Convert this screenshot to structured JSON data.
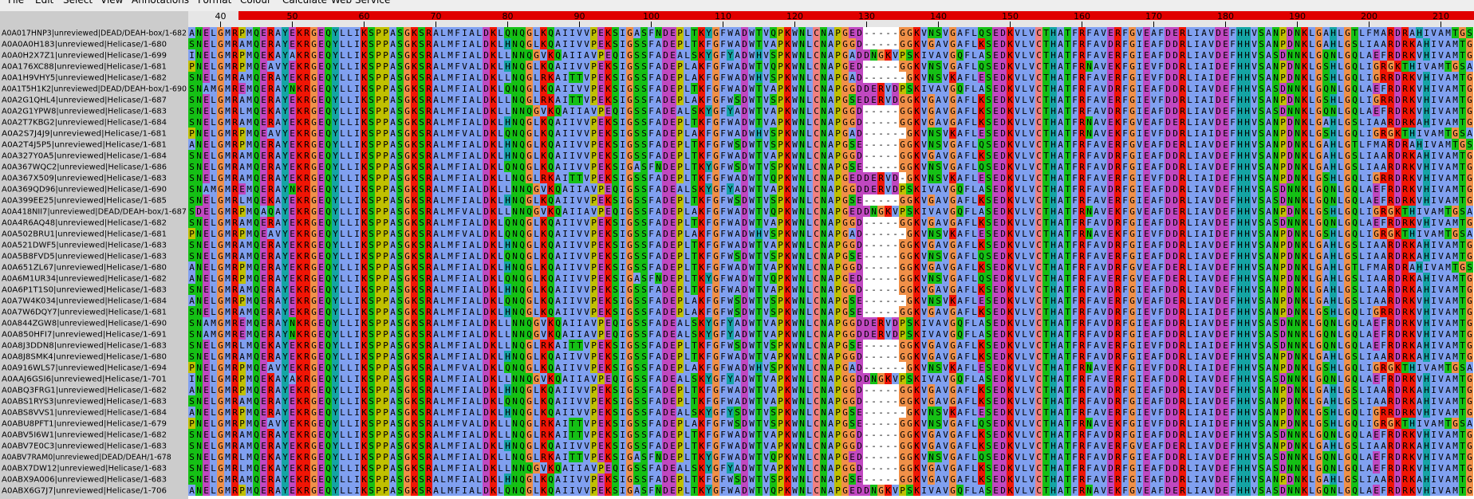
{
  "menu": [
    "File",
    "Edit",
    "Select",
    "View",
    "Annotations",
    "Format",
    "Colour",
    "Calculate",
    "Web Service"
  ],
  "ruler": {
    "ticks": [
      40,
      50,
      60,
      70,
      80,
      90,
      100,
      110,
      120,
      130,
      140,
      150,
      160,
      170,
      180,
      190,
      200,
      210
    ]
  },
  "rows": [
    {
      "name": "A0A017HNP3|unreviewed|DEAD/DEAH-box/1-682",
      "sequence": "ANELGMRPMQERAYEKRGEQYLLIKSPPASGKSRALMFIALDKLQNQGLKQAIIVVPEKSIGASFNDEPLTKYGFWADWTVQPKWNLCNAPGED-----GGKVNSVGAFLQSEDKVLVCTHATFRFAVERFGVEAFDERLIAVDEFHHVSANPDNKLGAHLGTLFMARDRAHIVAMTGS"
    },
    {
      "name": "A0A0A0H183|unreviewed|Helicase/1-680",
      "sequence": "SNELGMRAMQERAYEKRGEQYLLIKSPPASGKSRALMFIALDKLHNQGLKQAIIVVPEKSIGSSFADEPLTKFGFWADWTVAPKWNLCNAPGGD-----GGKVGAVGAFLKSEDKVLVCTHATFRFAVDRFGIEAFDDRLIAVDEFHHVSANPDNKLGAHLGSLIAARDRKAHIVAMTG"
    },
    {
      "name": "A0A0H2X7Z1|unreviewed|Helicase/1-699",
      "sequence": "INELGMRPMQEKAYAKRGEQYLLIKSPPASGKSRALMFIALDKLLNNQGVKQAIIAVPEQIGSSFADEALSKYGFYADWHVSPKWNLCNAPGADDNGKVPSKIVAVGQFLASEDKVLVCTHATFRFAVERFGIEAFDDRLIAVDEFHHVSASDNNKLGQNLGQLAEFRDRKVHIVAMTG"
    },
    {
      "name": "A0A176XC88|unreviewed|Helicase/1-681",
      "sequence": "PNELGMRPMQEAVYEKRGEQYLLIKSPPASGKSRALMFVALDKLHNQGLKQAIIVVPEKSIGSSFADEPLAKFGFWADWTVQPKWNLCNAPGED-----GGKVNSVGAFLQSEDKVLVCTHATFRNAVEKFGIEVFDDRLIAIDEFHHVSANPDNKLGSHLGQLIGRGKTHIVAMTGSA"
    },
    {
      "name": "A0A1H9VHY5|unreviewed|Helicase/1-682",
      "sequence": "SNELGMRAMQERAYEKRGEQYLLIKSPPASGKSRALMFIALDKLLNQGLRKAITTVPEKSIGSSFADEPLAKFGFWADWHVSPKWNLCNAPGAD------GKVNSVKAFLESEDKVLVCTHATFRFAVERFGIEVFDDRLIAIDEFHHVSANPDNKLGSHLGQLIGRRDRKVHIVAMTG"
    },
    {
      "name": "A0A1T5H1K2|unreviewed|DEAD/DEAH-box/1-690",
      "sequence": "SNAMGMREMQERAYNKRGEQYLLIKSPPASGKSRALMFIALDKLQNQGLKQAIIVVPEKSIGSSFADEPLTKFGFWADWTVAPKWNLCNAPGGDDERVDPSKIVAVGQFLASEDKVLVCTHATFRFAVDRFGIEAFDDRLIAVDEFHHVSASDNNKLGQNLGQLAEFRDRKVHIVAMTG"
    },
    {
      "name": "A0A2G1QHL4|unreviewed|Helicase/1-687",
      "sequence": "SNELGMRAMQERAYEKRGEQYLLIKSPPASGKSRALMFIALDKLLNQGLRKAITTVPEKSIGSSFADEPLAKFGFWSDWTVSPKWNLCNAPGSEDERVDGGKVGAVGAFLKSEDKVLVCTHATFRFAVERFGIEVFDDRLIAIDEFHHVSANPDNKLGSHLGQLIGRRDRKVHIVAMTG"
    },
    {
      "name": "A0A2G1YPW8|unreviewed|Helicase/1-683",
      "sequence": "SNELGMRLMQEKAYEKRGEQYLLIKSPPASGKSRALMFIALDKLLNNQGVKQAIIAVPEQIGSSFADEALSKYGFYADWTVAPKWNLCNAPGGD-----GGKVGAVGAFLKSEDKVLVCTHATFRFAVDRFGIEAFDDRLIAVDEFHHVSASDNNKLGQNLGQLAEFRDRKVHIVAMTG"
    },
    {
      "name": "A0A2T7KBG2|unreviewed|Helicase/1-684",
      "sequence": "SNELGMRAMQERAYEKRGEQYLLIKSPPASGKSRALMFIALDKLHNQGLKQAIIVVPEKSIGSSFADEPLTKFGFWADWTVAPKWNLCNAPGGD-----GGKVGAVGAFLKSEDKVLVCTHATFRNAVEKFGVEAFDERLIAVDEFHHVSANPDNKLGAHLGSLIAARDRKAHIVAMTG"
    },
    {
      "name": "A0A2S7J4J9|unreviewed|Helicase/1-681",
      "sequence": "PNELGMRPMQEAVYEKRGEQYLLIKSPPASGKSRALMFVALDKLQNQGLKQAIIVVPEKSIGSSFADEPLAKFGFWADWHVSPKWNLCNAPGAD------GKVNSVKAFLESEDKVLVCTHATFRNAVEKFGIEVFDDRLIAIDEFHHVSANPDNKLGSHLGQLIGRGKTHIVAMTGSA"
    },
    {
      "name": "A0A2T4J5P5|unreviewed|Helicase/1-681",
      "sequence": "ANELGMRPMQERAYEKRGEQYLLIKSPPASGKSRALMFIALDKLHNQGLKQAIIVVPEKSIGSSFADEPLTKFGFWSDWTVSPKWNLCNAPGSE-----GGKVNSVGAFLQSEDKVLVCTHATFRFAVERFGVEAFDERLIAVDEFHHVSANPDNKLGAHLGTLFMARDRAHIVAMTGS"
    },
    {
      "name": "A0A327Y0A5|unreviewed|Helicase/1-684",
      "sequence": "SNELGMRAMQERAYEKRGEQYLLIKSPPASGKSRALMFIALDKLHNQGLKQAIIVVPEKSIGSSFADEPLTKFGFWADWTVAPKWNLCNAPGGD-----GGKVGAVGAFLKSEDKVLVCTHATFRFAVDRFGIEAFDDRLIAVDEFHHVSANPDNKLGAHLGSLIAARDRKAHIVAMTG"
    },
    {
      "name": "A0A367WQC2|unreviewed|Helicase/1-686",
      "sequence": "SNELGMRAMQERAYEKRGEQYLLIKSPPASGKSRALMFIALDKLQNQGLKQAIIVVPEKSIGASFNDEPLTKYGFWSDWTVSPKWNLCNAPGSE-----GGKVNSVGAFLQSEDKVLVCTHATFRFAVDRFGIEAFDDRLIAVDEFHHVSANPDNKLGAHLGSLIAARDRKVHIVAMTG"
    },
    {
      "name": "A0A367X509|unreviewed|Helicase/1-683",
      "sequence": "SNELGMRAMQERAYEKRGEQYLLIKSPPASGKSRALMFIALDKLLNQGLRKAITTVPEKSIGSSFADEPLTKFGFWADWTVQPKWNLCNAPGEDDERVD-GKVNSVKAFLESEDKVLVCTHATFRFAVERFGIEVFDDRLIAIDEFHHVSANPDNKLGSHLGQLIGRRDRKVHIVAMTG"
    },
    {
      "name": "A0A369QD96|unreviewed|Helicase/1-690",
      "sequence": "SNAMGMREMQERAYNKRGEQYLLIKSPPASGKSRALMFIALDKLLNNQGVKQAIIAVPEQIGSSFADEALSKYGFYADWTVAPKWNLCNAPGGDDERVDPSKIVAVGQFLASEDKVLVCTHATFRFAVDRFGIEAFDDRLIAVDEFHHVSASDNNKLGQNLGQLAEFRDRKVHIVAMTG"
    },
    {
      "name": "A0A399EE25|unreviewed|Helicase/1-685",
      "sequence": "SNELGMRLMQEKAYEKRGEQYLLIKSPPASGKSRALMFIALDKLHNQGLKQAIIVVPEKSIGSSFADEPLTKFGFWSDWTVSPKWNLCNAPGSE-----GGKVGAVGAFLKSEDKVLVCTHATFRFAVERFGIEAFDDRLIAVDEFHHVSASDNNKLGQNLGQLAEFRDRKVHIVAMTG"
    },
    {
      "name": "A0A418NII7|unreviewed|DEAD/DEAH-box/1-687",
      "sequence": "SDELGMRPMQAQAYEKRGEQYLLIKSPPASGKSRALMFVALDKLLNNQGVKQAIIAVPEQIGSSFADEPLAKFGFWADWTVQPKWNLCNAPGEDDNGKVPSKIVAVGQFLASEDKVLVCTHATFRNAVEKFGVEAFDERLIAVDEFHHVSANPDNKLGSHLGQLIGRGKTHIVAMTGSA"
    },
    {
      "name": "A0A4R6AQ48|unreviewed|Helicase/1-682",
      "sequence": "SNELGMRAMQERAYEKRGEQYLLIKSPPASGKSRALMFIALDKLQNQGLKQAIIVVPEKSIGSSFADEPLTKFGFWADWTVAPKWNLCNAPGGD-----GGKVGAVGAFLKSEDKVLVCTHATFRFAVDRFGIEAFDDRLIAVDEFHHVSASDNNKLGQNLGQLAEFRDRKVHIVAMTG"
    },
    {
      "name": "A0A502BRU1|unreviewed|Helicase/1-681",
      "sequence": "PNELGMRPMQEAVYEKRGEQYLLIKSPPASGKSRALMFVALDKLQNQGLKQAIIVVPEKSIGSSFADEPLAKFGFWADWHVSPKWNLCNAPGAD------GKVNSVKAFLESEDKVLVCTHATFRNAVEKFGIEVFDDRLIAIDEFHHVSANPDNKLGSHLGQLIGRGKTHIVAMTGSA"
    },
    {
      "name": "A0A521DWF5|unreviewed|Helicase/1-683",
      "sequence": "SNELGMRAMQERAYEKRGEQYLLIKSPPASGKSRALMFIALDKLHNQGLKQAIIVVPEKSIGSSFADEPLTKFGFWADWTVAPKWNLCNAPGGD-----GGKVGAVGAFLKSEDKVLVCTHATFRFAVDRFGIEAFDDRLIAVDEFHHVSANPDNKLGAHLGSLIAARDRKAHIVAMTG"
    },
    {
      "name": "A0A5B8FVD5|unreviewed|Helicase/1-683",
      "sequence": "SNELGMRAMQERAYEKRGEQYLLIKSPPASGKSRALMFIALDKLQNQGLKQAIIVVPEKSIGSSFADEPLTKFGFWSDWTVSPKWNLCNAPGSE-----GGKVNSVGAFLQSEDKVLVCTHATFRFAVERFGIEAFDDRLIAVDEFHHVSANPDNKLGAHLGSLIAARDRKAHIVAMTG"
    },
    {
      "name": "A0A651ZL67|unreviewed|Helicase/1-680",
      "sequence": "ANELGMRPMQERAYEKRGEQYLLIKSPPASGKSRALMFIALDKLHNQGLKQAIIVVPEKSIGSSFADEPLTKFGFWADWTVAPKWNLCNAPGGD-----GGKVGAVGAFLKSEDKVLVCTHATFRFAVDRFGVEAFDERLIAVDEFHHVSANPDNKLGAHLGTLFMARDRAHIVAMTGS"
    },
    {
      "name": "A0A6M1UR34|unreviewed|Helicase/1-682",
      "sequence": "ANELGMRPMQERAYEKRGEQYLLIKSPPASGKSRALMFIALDKLQNQGLKQAIIVVPEKSIGASFNDEPLTKYGFWADWTVQPKWNLCNAPGED-----GGKVNSVGAFLQSEDKVLVCTHATFRFAVERFGVEAFDERLIAVDEFHHVSANPDNKLGAHLGSLIAARDRKAHIVAMTG"
    },
    {
      "name": "A0A6P1T1S0|unreviewed|Helicase/1-683",
      "sequence": "SNELGMRAMQERAYEKRGEQYLLIKSPPASGKSRALMFIALDKLHNQGLKQAIIVVPEKSIGSSFADEPLTKFGFWADWTVAPKWNLCNAPGGD-----GGKVGAVGAFLKSEDKVLVCTHATFRFAVDRFGIEAFDDRLIAVDEFHHVSANPDNKLGAHLGSLIAARDRKAHIVAMTG"
    },
    {
      "name": "A0A7W4K034|unreviewed|Helicase/1-684",
      "sequence": "ANELGMRPMQERAYEKRGEQYLLIKSPPASGKSRALMFIALDKLQNQGLKQAIIVVPEKSIGSSFADEPLAKFGFWSDWTVSPKWNLCNAPGSE------GKVNSVKAFLESEDKVLVCTHATFRFAVERFGVEAFDERLIAVDEFHHVSANPDNKLGAHLGSLIAARDRKVHIVAMTG"
    },
    {
      "name": "A0A7W6DQY7|unreviewed|Helicase/1-681",
      "sequence": "SNELGMRAMQERAYEKRGEQYLLIKSPPASGKSRALMFIALDKLHNQGLKQAIIVVPEKSIGSSFADEPLAKFGFWSDWTVSPKWNLCNAPGSE-----GGKVGAVGAFLKSEDKVLVCTHATFRFAVDRFGIEVFDDRLIAIDEFHHVSANPDNKLGSHLGQLIGRRDRKVHIVAMTG"
    },
    {
      "name": "A0A844ZGW8|unreviewed|Helicase/1-690",
      "sequence": "SNAMGMREMQERAYNKRGEQYLLIKSPPASGKSRALMFIALDKLLNNQGVKQAIIAVPEQIGSSFADEALSKYGFYADWTVAPKWNLCNAPGGDDERVDPSKIVAVGQFLASEDKVLVCTHATFRFAVDRFGIEAFDDRLIAVDEFHHVSASDNNKLGQNLGQLAEFRDRKVHIVAMTG"
    },
    {
      "name": "A0A850HFI7|unreviewed|Helicase/1-691",
      "sequence": "SNAMGMREMQERAYNKRGEQYLLIKSPPASGKSRALMFIALDKLLNNQGVKQAIIAVPEQIGSSFADEALSKYGFYADWTVAPKWNLCNAPGGDDERVDPSKIVAVGQFLASEDKVLVCTHATFRFAVDRFGIEAFDDRLIAVDEFHHVSASDNNKLGQNLGQLAEFRDRKVHIVAMTG"
    },
    {
      "name": "A0A8J3DDN8|unreviewed|Helicase/1-683",
      "sequence": "SNELGMRLMQEKAYEKRGEQYLLIKSPPASGKSRALMFIALDKLLNQGLRKAITTVPEKSIGSSFADEPLTKFGFWSDWTVSPKWNLCNAPGSE-----GGKVGAVGAFLKSEDKVLVCTHATFRFAVERFGIEVFDDRLIAIDEFHHVSASDNNKLGQNLGQLAEFRDRKAHIVAMTG"
    },
    {
      "name": "A0A8J8SMK4|unreviewed|Helicase/1-680",
      "sequence": "SNELGMRAMQERAYEKRGEQYLLIKSPPASGKSRALMFIALDKLHNQGLKQAIIVVPEKSIGSSFADEPLTKFGFWADWTVAPKWNLCNAPGGD-----GGKVGAVGAFLKSEDKVLVCTHATFRFAVDRFGIEAFDDRLIAVDEFHHVSANPDNKLGAHLGSLIAARDRKAHIVAMTG"
    },
    {
      "name": "A0A916WLS7|unreviewed|Helicase/1-694",
      "sequence": "PNELGMRPMQEAVYEKRGEQYLLIKSPPASGKSRALMFVALDKLQNQGLKQAIIVVPEKSIGSSFADEPLAKFGFWADWHVSPKWNLCNAPGAD------GKVNSVKAFLESEDKVLVCTHATFRNAVEKFGIEVFDDRLIAIDEFHHVSANPDNKLGSHLGQLIGRGKTHIVAMTGSA"
    },
    {
      "name": "A0AAJ6GSI6|unreviewed|Helicase/1-701",
      "sequence": "INELGMRPMQEKAYAKRGEQYLLIKSPPASGKSRALMFIALDKLLNNQGVKQAIIAVPEQIGSSFADEALSKYGFYADWTVAPKWNLCNAPGGDDNGKVPSKIVAVGQFLASEDKVLVCTHATFRFAVERFGIEAFDDRLIAVDEFHHVSASDNNKLGQNLGQLAEFRDRKVHIVAMTG"
    },
    {
      "name": "A0ABQ3FRG1|unreviewed|Helicase/1-682",
      "sequence": "ANELGMRPMQERAYEKRGEQYLLIKSPPASGKSRALMFIALDKLHNQGLKQAIIVVPEKSIGSSFADEPLTKFGFWADWTVAPKWNLCNAPGGD-----GGKVGAVGAFLKSEDKVLVCTHATFRFAVDRFGIEAFDDRLIAVDEFHHVSANPDNKLGAHLGSLIAARDRKAHIVAMTG"
    },
    {
      "name": "A0ABS1RYS3|unreviewed|Helicase/1-683",
      "sequence": "SNELGMRAMQERAYEKRGEQYLLIKSPPASGKSRALMFIALDKLQNQGLKQAIIVVPEKSIGSSFADEPLTKFGFWADWTVAPKWNLCNAPGGD-----GGKVGAVGAFLKSEDKVLVCTHATFRFAVDRFGIEAFDDRLIAVDEFHHVSANPDNKLGAHLGSLIAARDRKAHIVAMTG"
    },
    {
      "name": "A0ABS8VVS1|unreviewed|Helicase/1-684",
      "sequence": "ANELGMRPMQERAYEKRGEQYLLIKSPPASGKSRALMFIALDKLHNQGLKQAIIVVPEKSIGSSFADEALSKYGFYSDWTVSPKWNLCNAPGSE------GKVNSVKAFLESEDKVLVCTHATFRFAVERFGIEVFDDRLIAIDEFHHVSANPDNKLGSHLGQLIGRRDRKVHIVAMTG"
    },
    {
      "name": "A0ABU8PFT1|unreviewed|Helicase/1-679",
      "sequence": "PNELGMRPMQEAVYEKRGEQYLLIKSPPASGKSRALMFVALDKLLNQGLRKAITTVPEKSIGSSFADEPLAKFGFWSDWTVSPKWNLCNAPGSE-----GGKVNSVGAFLQSEDKVLVCTHATFRNAVEKFGIEVFDDRLIAIDEFHHVSANPDNKLGSHLGQLIGRGKTHIVAMTGSA"
    },
    {
      "name": "A0ABV5I6W1|unreviewed|Helicase/1-682",
      "sequence": "SNELGMRAMQERAYEKRGEQYLLIKSPPASGKSRALMFIALDKLLNQGLRKAITTVPEKSIGSSFADEPLTKFGFWADWTVAPKWNLCNAPGGD-----GGKVGAVGAFLKSEDKVLVCTHATFRFAVDRFGIEAFDDRLIAVDEFHHVSASDNNKLGQNLGQLAEFRDRKVHIVAMTG"
    },
    {
      "name": "A0ABV7E0C3|unreviewed|Helicase/1-683",
      "sequence": "SNELGMRAMQERAYEKRGEQYLLIKSPPASGKSRALMFIALDKLHNQGLKQAIIVVPEKSIGSSFADEPLTKFGFWADWTVAPKWNLCNAPGGD-----GGKVGAVGAFLKSEDKVLVCTHATFRFAVERFGVEAFDERLIAVDEFHHVSANPDNKLGAHLGSLIAARDRKAHIVAMTG"
    },
    {
      "name": "A0ABV7RAM0|unreviewed|DEAD/DEAH/1-678",
      "sequence": "SNELGMRLMQEKAYEKRGEQYLLIKSPPASGKSRALMFIALDKLLNQGLRKAITTVPEKSIGASFNDEPLTKYGFWADWTVQPKWNLCNAPGED-----GGKVNSVGAFLQSEDKVLVCTHATFRFAVDRFGIEAFDDRLIAVDEFHHVSASDNNKLGQNLGQLAEFRDRKVHIVAMTG"
    },
    {
      "name": "A0ABX7DW12|unreviewed|Helicase/1-683",
      "sequence": "SNELGMRLMQEKAYEKRGEQYLLIKSPPASGKSRALMFIALDKLLNNQGVKQAIIAVPEQIGSSFADEALSKYGFYADWTVAPKWNLCNAPGGD-----GGKVGAVGAFLKSEDKVLVCTHATFRFAVDRFGIEAFDDRLIAVDEFHHVSASDNNKLGQNLGQLAEFRDRKVHIVAMTG"
    },
    {
      "name": "A0ABX9A006|unreviewed|Helicase/1-683",
      "sequence": "SNELGMRAMQERAYEKRGEQYLLIKSPPASGKSRALMFIALDKLHNQGLKQAIIVVPEKSIGSSFADEPLTKFGFWSDWTVSPKWNLCNAPGSE-----GGKVGAVGAFLKSEDKVLVCTHATFRFAVERFGIEAFDDRLIAVDEFHHVSANPDNKLGAHLGSLIAARDRKAHIVAMTG"
    },
    {
      "name": "A0ABX6G7J7|unreviewed|Helicase/1-706",
      "sequence": "ANELGMRPMQERAYEKRGEQYLLIKSPPASGKSRALMFIALDKLQNQGLKQAIIVVPEKSIGASFNDEPLTKYGFWADWTVQPKWNLCNAPGEDDNGKVPSKIVAVGQFLASEDKVLVCTHATFRNAVEKFGVEAFDERLIAVDEFHHVSASDNNKLGQNLGQLAEFRDRKVHIVAMTG"
    }
  ]
}
